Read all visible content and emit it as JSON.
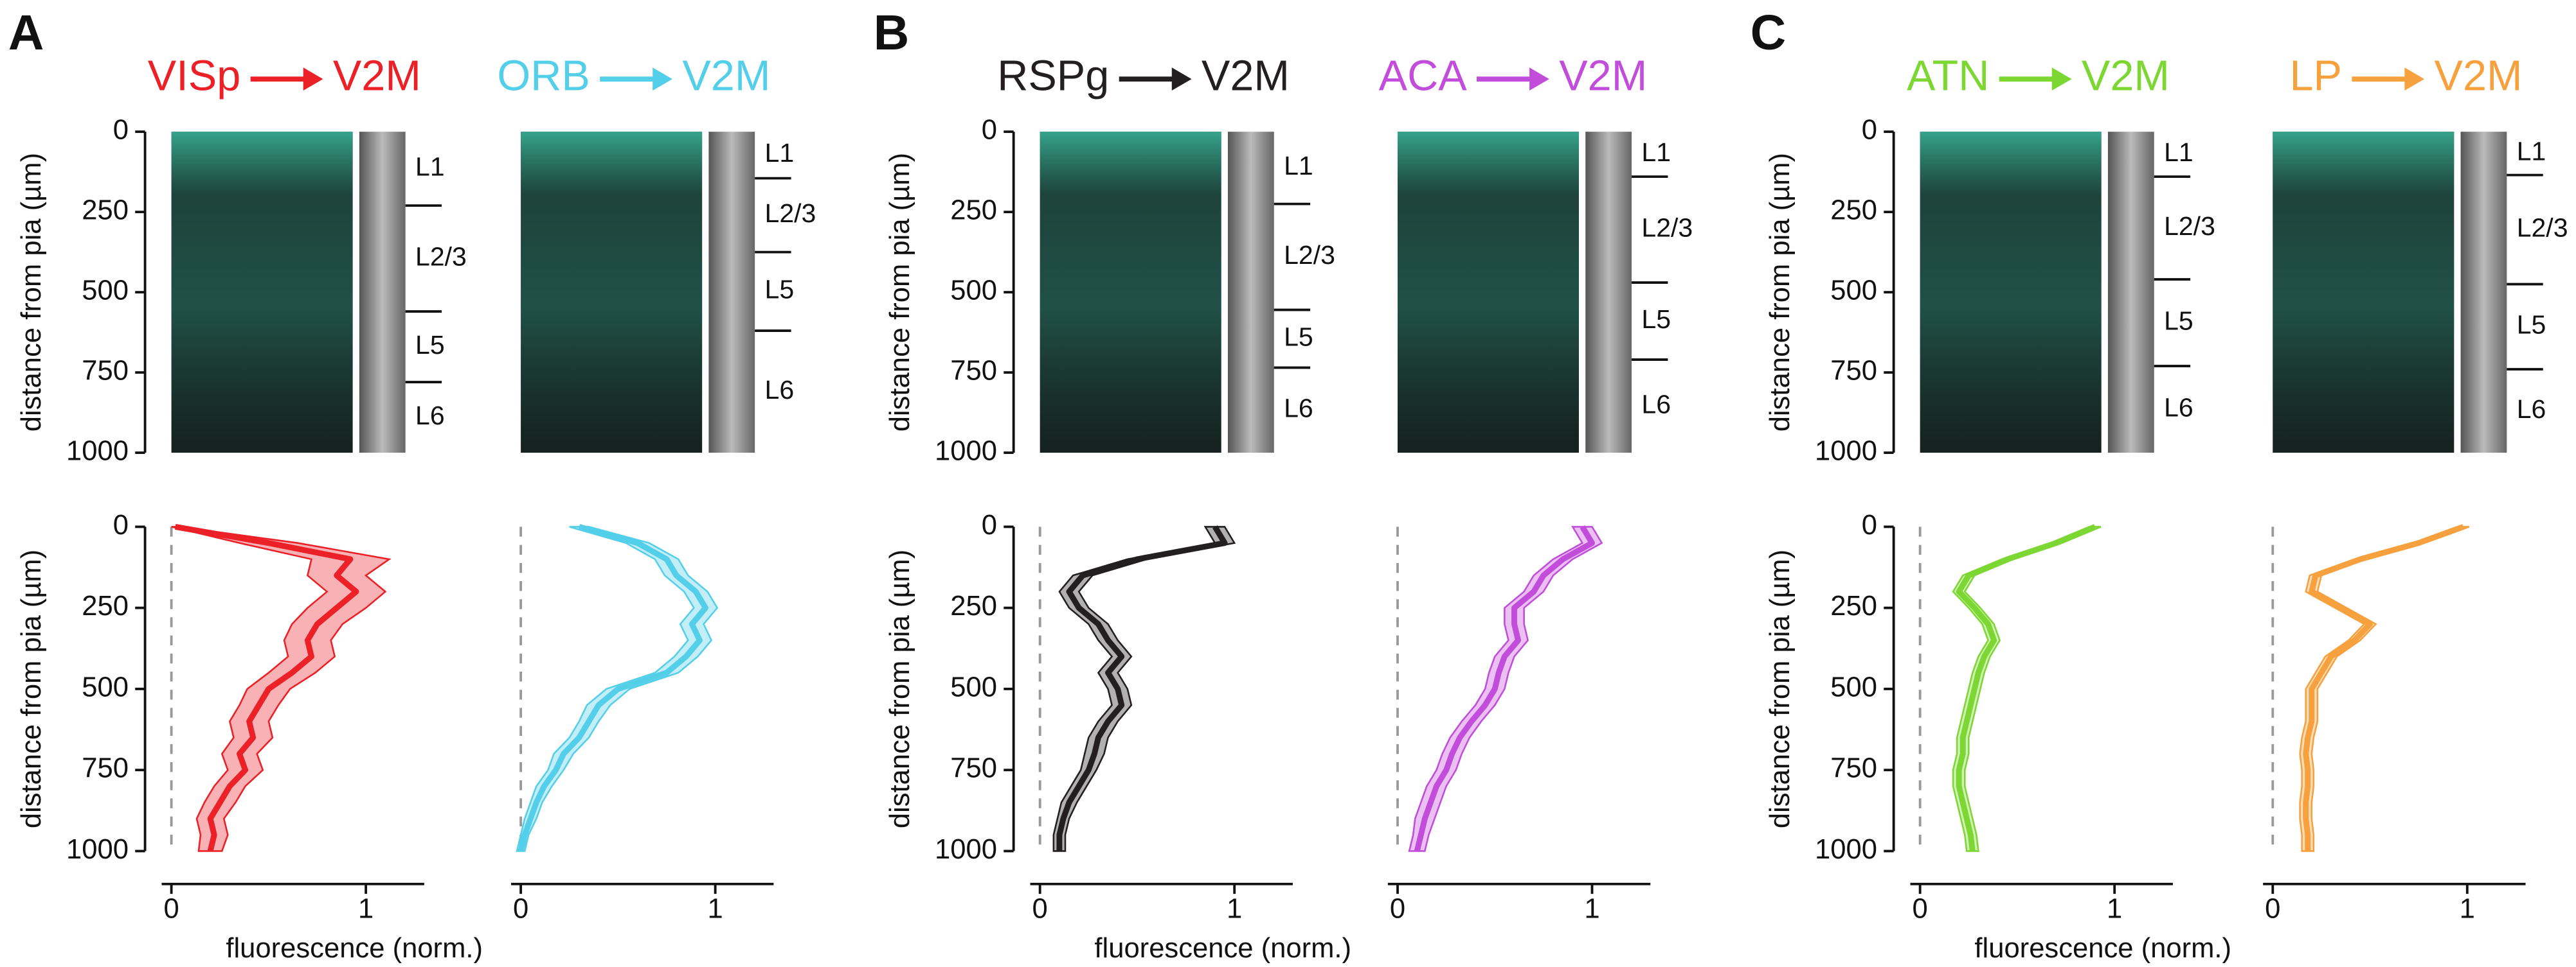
{
  "panel_labels": [
    "A",
    "B",
    "C"
  ],
  "chart_data": [
    {
      "type": "line",
      "title": {
        "source": "VISp",
        "target": "V2M"
      },
      "color": "#ec2027",
      "ylabel": "distance from pia (µm)",
      "xlabel": "fluorescence (norm.)",
      "layers": [
        "L1",
        "L2/3",
        "L5",
        "L6"
      ],
      "layer_boundaries": [
        230,
        560,
        780
      ],
      "depth": [
        0,
        50,
        100,
        150,
        200,
        250,
        300,
        350,
        400,
        450,
        500,
        550,
        600,
        650,
        700,
        750,
        800,
        850,
        900,
        950,
        1000
      ],
      "values": [
        0.02,
        0.5,
        0.92,
        0.85,
        0.95,
        0.85,
        0.75,
        0.7,
        0.72,
        0.62,
        0.5,
        0.45,
        0.4,
        0.42,
        0.35,
        0.38,
        0.3,
        0.25,
        0.2,
        0.22,
        0.2
      ],
      "errors": [
        0.02,
        0.15,
        0.2,
        0.15,
        0.15,
        0.15,
        0.13,
        0.12,
        0.12,
        0.12,
        0.11,
        0.1,
        0.1,
        0.1,
        0.09,
        0.09,
        0.08,
        0.08,
        0.07,
        0.07,
        0.06
      ],
      "xlim": [
        -0.05,
        1.3
      ],
      "xticks": [
        0,
        1
      ],
      "ylim": [
        0,
        1000
      ],
      "y_inverted": true,
      "yticks": [
        0,
        250,
        500,
        750,
        1000
      ]
    },
    {
      "type": "line",
      "title": {
        "source": "ORB",
        "target": "V2M"
      },
      "color": "#54cfe9",
      "layers": [
        "L1",
        "L2/3",
        "L5",
        "L6"
      ],
      "layer_boundaries": [
        145,
        375,
        620
      ],
      "depth": [
        0,
        50,
        100,
        150,
        200,
        250,
        300,
        350,
        400,
        450,
        500,
        550,
        600,
        650,
        700,
        750,
        800,
        850,
        900,
        950,
        1000
      ],
      "values": [
        0.3,
        0.6,
        0.75,
        0.8,
        0.9,
        0.95,
        0.88,
        0.92,
        0.85,
        0.75,
        0.5,
        0.4,
        0.35,
        0.3,
        0.22,
        0.18,
        0.12,
        0.08,
        0.05,
        0.02,
        0.0
      ],
      "errors": [
        0.05,
        0.06,
        0.06,
        0.06,
        0.06,
        0.06,
        0.06,
        0.06,
        0.06,
        0.06,
        0.06,
        0.06,
        0.05,
        0.05,
        0.05,
        0.04,
        0.04,
        0.03,
        0.03,
        0.02,
        0.02
      ],
      "xlim": [
        -0.05,
        1.3
      ],
      "xticks": [
        0,
        1
      ],
      "ylim": [
        0,
        1000
      ],
      "y_inverted": true,
      "yticks": [
        0,
        250,
        500,
        750,
        1000
      ]
    },
    {
      "type": "line",
      "title": {
        "source": "RSPg",
        "target": "V2M"
      },
      "color": "#231f20",
      "ylabel": "distance from pia (µm)",
      "xlabel": "fluorescence (norm.)",
      "layers": [
        "L1",
        "L2/3",
        "L5",
        "L6"
      ],
      "layer_boundaries": [
        225,
        555,
        735
      ],
      "depth": [
        0,
        50,
        100,
        150,
        200,
        250,
        300,
        350,
        400,
        450,
        500,
        550,
        600,
        650,
        700,
        750,
        800,
        850,
        900,
        950,
        1000
      ],
      "values": [
        0.9,
        0.95,
        0.5,
        0.22,
        0.15,
        0.2,
        0.3,
        0.35,
        0.42,
        0.35,
        0.4,
        0.42,
        0.35,
        0.3,
        0.28,
        0.25,
        0.2,
        0.15,
        0.12,
        0.1,
        0.1
      ],
      "errors": [
        0.05,
        0.05,
        0.05,
        0.05,
        0.05,
        0.05,
        0.05,
        0.05,
        0.05,
        0.05,
        0.05,
        0.05,
        0.05,
        0.05,
        0.05,
        0.04,
        0.04,
        0.04,
        0.03,
        0.03,
        0.03
      ],
      "xlim": [
        -0.05,
        1.3
      ],
      "xticks": [
        0,
        1
      ],
      "ylim": [
        0,
        1000
      ],
      "y_inverted": true,
      "yticks": [
        0,
        250,
        500,
        750,
        1000
      ]
    },
    {
      "type": "line",
      "title": {
        "source": "ACA",
        "target": "V2M"
      },
      "color": "#c24ddb",
      "layers": [
        "L1",
        "L2/3",
        "L5",
        "L6"
      ],
      "layer_boundaries": [
        140,
        470,
        710
      ],
      "depth": [
        0,
        50,
        100,
        150,
        200,
        250,
        300,
        350,
        400,
        450,
        500,
        550,
        600,
        650,
        700,
        750,
        800,
        850,
        900,
        950,
        1000
      ],
      "values": [
        0.95,
        1.0,
        0.85,
        0.75,
        0.7,
        0.6,
        0.6,
        0.62,
        0.55,
        0.52,
        0.5,
        0.45,
        0.38,
        0.32,
        0.28,
        0.25,
        0.2,
        0.17,
        0.14,
        0.12,
        0.1
      ],
      "errors": [
        0.05,
        0.05,
        0.05,
        0.05,
        0.05,
        0.05,
        0.05,
        0.05,
        0.05,
        0.05,
        0.05,
        0.05,
        0.05,
        0.05,
        0.05,
        0.05,
        0.05,
        0.05,
        0.05,
        0.04,
        0.04
      ],
      "xlim": [
        -0.05,
        1.3
      ],
      "xticks": [
        0,
        1
      ],
      "ylim": [
        0,
        1000
      ],
      "y_inverted": true,
      "yticks": [
        0,
        250,
        500,
        750,
        1000
      ]
    },
    {
      "type": "line",
      "title": {
        "source": "ATN",
        "target": "V2M"
      },
      "color": "#7cd733",
      "ylabel": "distance from pia (µm)",
      "xlabel": "fluorescence (norm.)",
      "layers": [
        "L1",
        "L2/3",
        "L5",
        "L6"
      ],
      "layer_boundaries": [
        140,
        460,
        730
      ],
      "depth": [
        0,
        50,
        100,
        150,
        200,
        250,
        300,
        350,
        400,
        450,
        500,
        550,
        600,
        650,
        700,
        750,
        800,
        850,
        900,
        950,
        1000
      ],
      "values": [
        0.9,
        0.7,
        0.45,
        0.25,
        0.2,
        0.28,
        0.35,
        0.38,
        0.33,
        0.3,
        0.28,
        0.26,
        0.24,
        0.22,
        0.22,
        0.2,
        0.2,
        0.22,
        0.24,
        0.26,
        0.27
      ],
      "errors": [
        0.03,
        0.03,
        0.03,
        0.03,
        0.03,
        0.03,
        0.03,
        0.03,
        0.03,
        0.03,
        0.03,
        0.03,
        0.03,
        0.03,
        0.03,
        0.03,
        0.03,
        0.03,
        0.03,
        0.03,
        0.03
      ],
      "xlim": [
        -0.05,
        1.3
      ],
      "xticks": [
        0,
        1
      ],
      "ylim": [
        0,
        1000
      ],
      "y_inverted": true,
      "yticks": [
        0,
        250,
        500,
        750,
        1000
      ]
    },
    {
      "type": "line",
      "title": {
        "source": "LP",
        "target": "V2M"
      },
      "color": "#f6a13d",
      "layers": [
        "L1",
        "L2/3",
        "L5",
        "L6"
      ],
      "layer_boundaries": [
        135,
        475,
        740
      ],
      "depth": [
        0,
        50,
        100,
        150,
        200,
        250,
        300,
        350,
        400,
        450,
        500,
        550,
        600,
        650,
        700,
        750,
        800,
        850,
        900,
        950,
        1000
      ],
      "values": [
        0.98,
        0.75,
        0.45,
        0.22,
        0.2,
        0.35,
        0.5,
        0.42,
        0.3,
        0.25,
        0.2,
        0.2,
        0.2,
        0.18,
        0.17,
        0.18,
        0.18,
        0.17,
        0.17,
        0.18,
        0.18
      ],
      "errors": [
        0.03,
        0.03,
        0.03,
        0.03,
        0.03,
        0.03,
        0.03,
        0.03,
        0.03,
        0.03,
        0.03,
        0.03,
        0.03,
        0.03,
        0.03,
        0.03,
        0.03,
        0.03,
        0.03,
        0.03,
        0.03
      ],
      "xlim": [
        -0.05,
        1.3
      ],
      "xticks": [
        0,
        1
      ],
      "ylim": [
        0,
        1000
      ],
      "y_inverted": true,
      "yticks": [
        0,
        250,
        500,
        750,
        1000
      ]
    }
  ]
}
